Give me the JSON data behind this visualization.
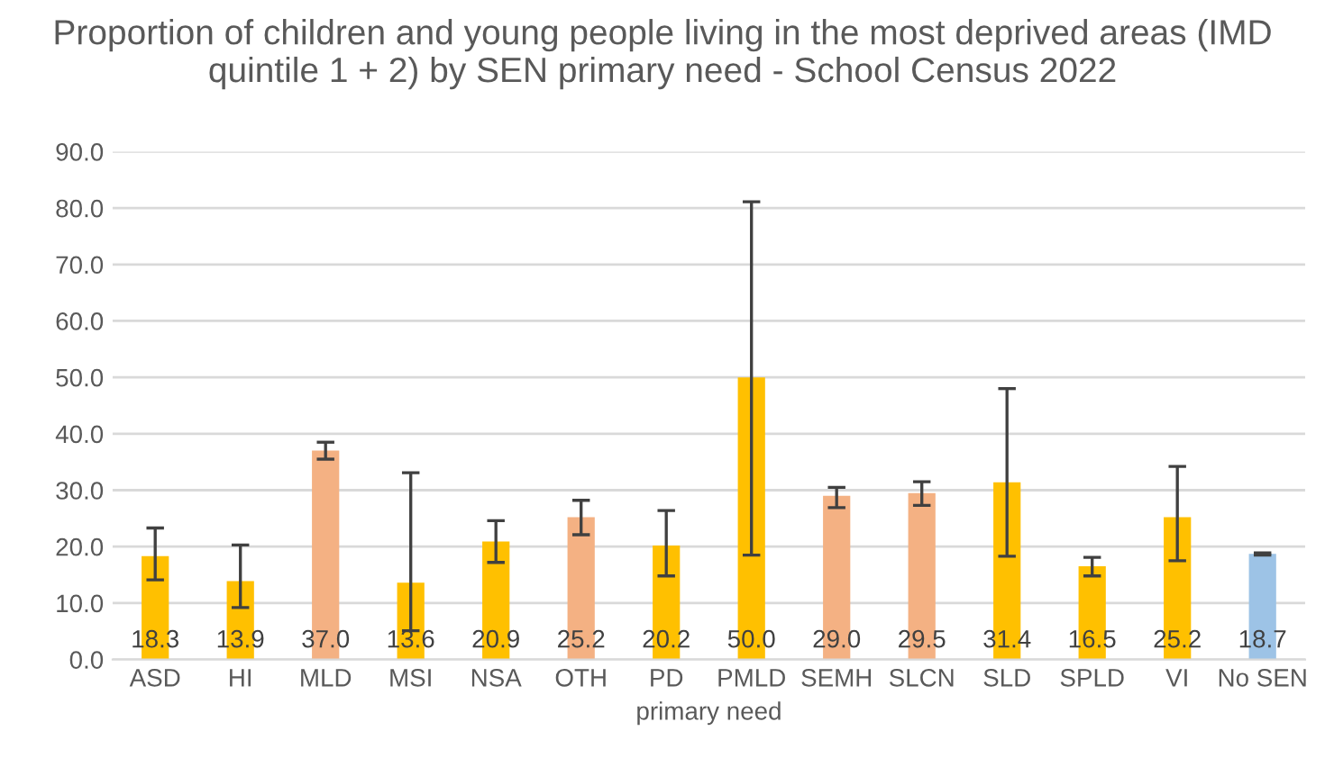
{
  "chart_data": {
    "type": "bar",
    "title": "Proportion of children and young people living in the most deprived areas (IMD quintile 1 + 2) by SEN primary need - School Census 2022",
    "xlabel": "primary need",
    "categories": [
      "ASD",
      "HI",
      "MLD",
      "MSI",
      "NSA",
      "OTH",
      "PD",
      "PMLD",
      "SEMH",
      "SLCN",
      "SLD",
      "SPLD",
      "VI",
      "No SEN"
    ],
    "values": [
      18.3,
      13.9,
      37.0,
      13.6,
      20.9,
      25.2,
      20.2,
      50.0,
      29.0,
      29.5,
      31.4,
      16.5,
      25.2,
      18.7
    ],
    "value_labels": [
      "18.3",
      "13.9",
      "37.0",
      "13.6",
      "20.9",
      "25.2",
      "20.2",
      "50.0",
      "29.0",
      "29.5",
      "31.4",
      "16.5",
      "25.2",
      "18.7"
    ],
    "colors": [
      "#ffc000",
      "#ffc000",
      "#f4b183",
      "#ffc000",
      "#ffc000",
      "#f4b183",
      "#ffc000",
      "#ffc000",
      "#f4b183",
      "#f4b183",
      "#ffc000",
      "#ffc000",
      "#ffc000",
      "#9dc3e6"
    ],
    "errors": [
      [
        14.1,
        23.3
      ],
      [
        9.2,
        20.3
      ],
      [
        35.5,
        38.5
      ],
      [
        5.1,
        33.1
      ],
      [
        17.2,
        24.6
      ],
      [
        22.1,
        28.2
      ],
      [
        14.8,
        26.4
      ],
      [
        18.5,
        81.1
      ],
      [
        26.9,
        30.5
      ],
      [
        27.3,
        31.5
      ],
      [
        18.3,
        48.0
      ],
      [
        14.8,
        18.1
      ],
      [
        17.5,
        34.2
      ],
      [
        18.5,
        18.9
      ]
    ],
    "ylim": [
      0,
      90
    ],
    "yticks": [
      {
        "value": 0,
        "label": "0.0"
      },
      {
        "value": 10,
        "label": "10.0"
      },
      {
        "value": 20,
        "label": "20.0"
      },
      {
        "value": 30,
        "label": "30.0"
      },
      {
        "value": 40,
        "label": "40.0"
      },
      {
        "value": 50,
        "label": "50.0"
      },
      {
        "value": 60,
        "label": "60.0"
      },
      {
        "value": 70,
        "label": "70.0"
      },
      {
        "value": 80,
        "label": "80.0"
      },
      {
        "value": 90,
        "label": "90.0"
      }
    ],
    "grid": "y"
  }
}
